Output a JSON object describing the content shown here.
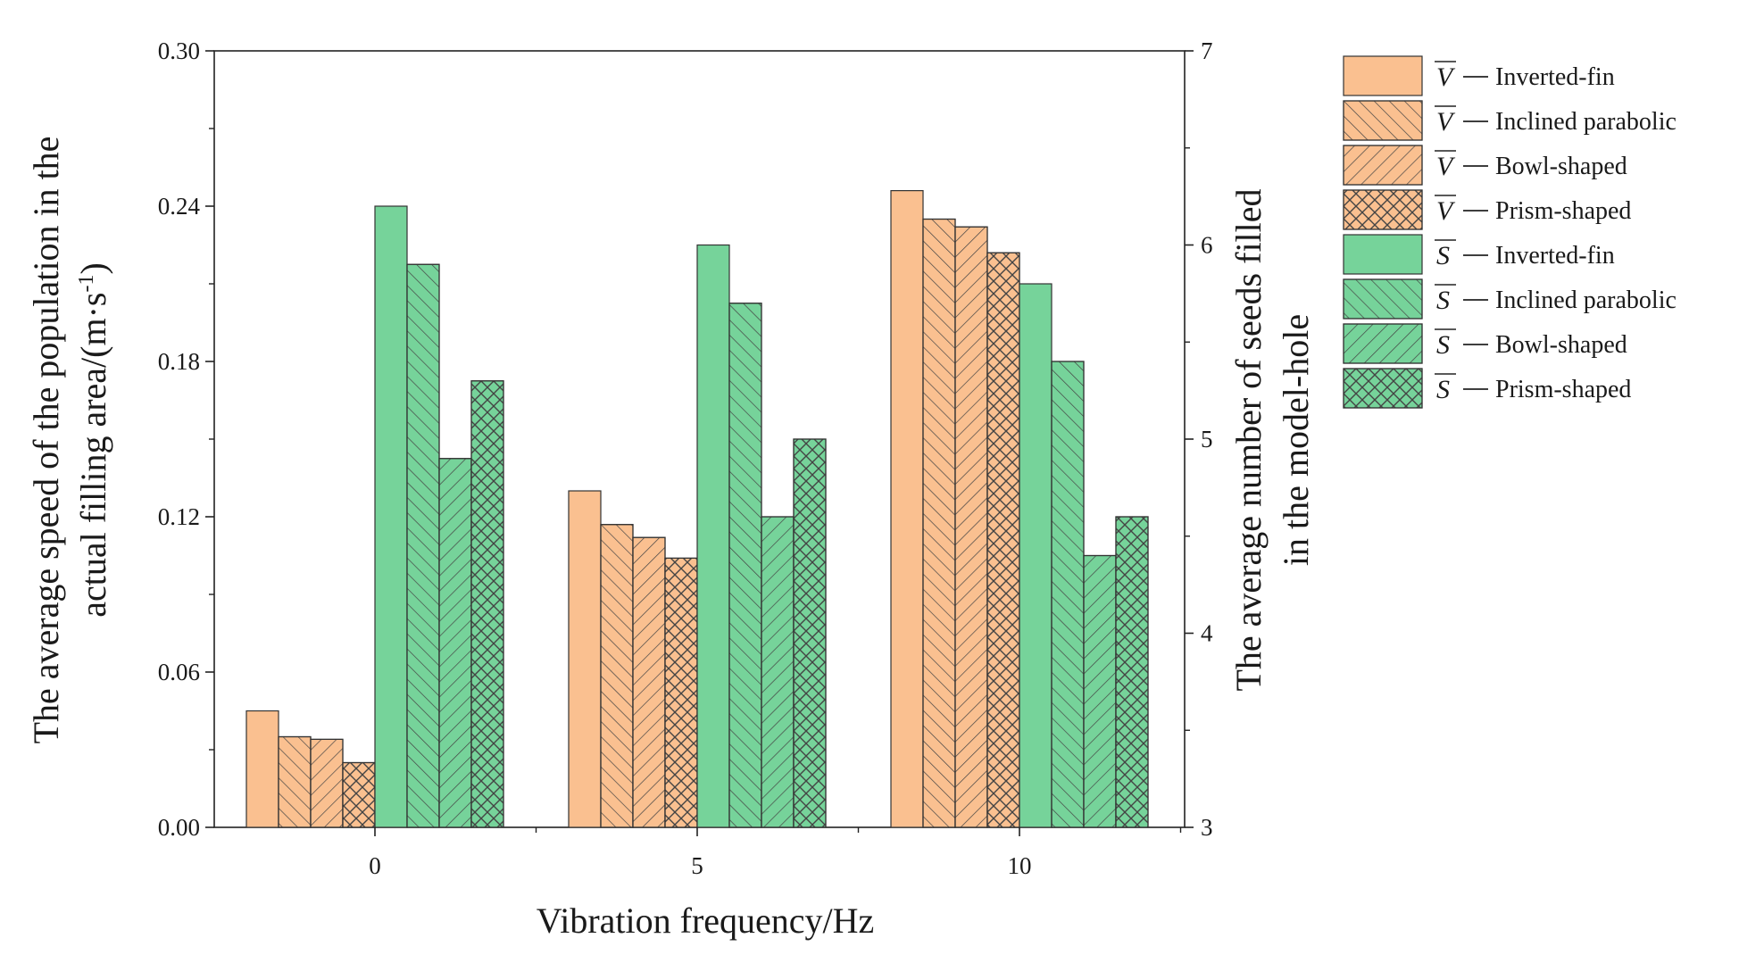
{
  "chart_data": {
    "type": "bar",
    "categories": [
      "0",
      "5",
      "10"
    ],
    "xlabel": "Vibration frequency/Hz",
    "ylabel_left": "The average speed of the population in the actual filling area/(m·s⁻¹)",
    "ylabel_left_lines": [
      "The average speed of the population in the",
      "actual filling area/(m·s"
    ],
    "ylabel_left_unit_exp": "-1",
    "ylabel_left_close": ")",
    "ylabel_right": "The average number of seeds filled in the model-hole",
    "ylabel_right_lines": [
      "The average number of seeds filled",
      "in the model-hole"
    ],
    "ylim_left": [
      0,
      0.3
    ],
    "yticks_left": [
      "0.00",
      "0.06",
      "0.12",
      "0.18",
      "0.24",
      "0.30"
    ],
    "ylim_right": [
      3,
      7
    ],
    "yticks_right": [
      "3",
      "4",
      "5",
      "6",
      "7"
    ],
    "grid": false,
    "legend_position": "right, outside plot",
    "colors": {
      "V": "#fac090",
      "S": "#76d39a",
      "edge": "#333333",
      "hatch": "#444444"
    },
    "series": [
      {
        "name": "Inverted-fin",
        "prefix": "V",
        "axis": "left",
        "hatch": "none",
        "values": [
          0.045,
          0.13,
          0.246
        ]
      },
      {
        "name": "Inclined parabolic",
        "prefix": "V",
        "axis": "left",
        "hatch": "forward",
        "values": [
          0.035,
          0.117,
          0.235
        ]
      },
      {
        "name": "Bowl-shaped",
        "prefix": "V",
        "axis": "left",
        "hatch": "back",
        "values": [
          0.034,
          0.112,
          0.232
        ]
      },
      {
        "name": "Prism-shaped",
        "prefix": "V",
        "axis": "left",
        "hatch": "cross",
        "values": [
          0.025,
          0.104,
          0.222
        ]
      },
      {
        "name": "Inverted-fin",
        "prefix": "S",
        "axis": "right",
        "hatch": "none",
        "values": [
          6.2,
          6.0,
          5.8
        ]
      },
      {
        "name": "Inclined parabolic",
        "prefix": "S",
        "axis": "right",
        "hatch": "forward",
        "values": [
          5.9,
          5.7,
          5.4
        ]
      },
      {
        "name": "Bowl-shaped",
        "prefix": "S",
        "axis": "right",
        "hatch": "back",
        "values": [
          4.9,
          4.6,
          4.4
        ]
      },
      {
        "name": "Prism-shaped",
        "prefix": "S",
        "axis": "right",
        "hatch": "cross",
        "values": [
          5.3,
          5.0,
          4.6
        ]
      }
    ]
  }
}
